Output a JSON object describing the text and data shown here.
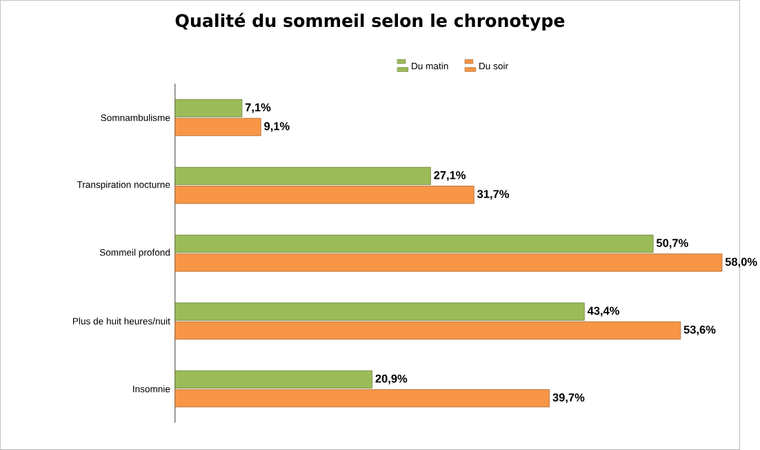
{
  "chart_data": {
    "type": "bar",
    "orientation": "horizontal",
    "title": "Qualité du sommeil selon le chronotype",
    "categories": [
      "Somnambulisme",
      "Transpiration nocturne",
      "Sommeil profond",
      "Plus de huit heures/nuit",
      "Insomnie"
    ],
    "series": [
      {
        "name": "Du matin",
        "color": "#9bbb59",
        "values": [
          7.1,
          27.1,
          50.7,
          43.4,
          20.9
        ],
        "value_labels": [
          "7,1%",
          "27,1%",
          "50,7%",
          "43,4%",
          "20,9%"
        ]
      },
      {
        "name": "Du soir",
        "color": "#f79646",
        "values": [
          9.1,
          31.7,
          58.0,
          53.6,
          39.7
        ],
        "value_labels": [
          "9,1%",
          "31,7%",
          "58,0%",
          "53,6%",
          "39,7%"
        ]
      }
    ],
    "legend": "top",
    "tick_labels": "y"
  }
}
